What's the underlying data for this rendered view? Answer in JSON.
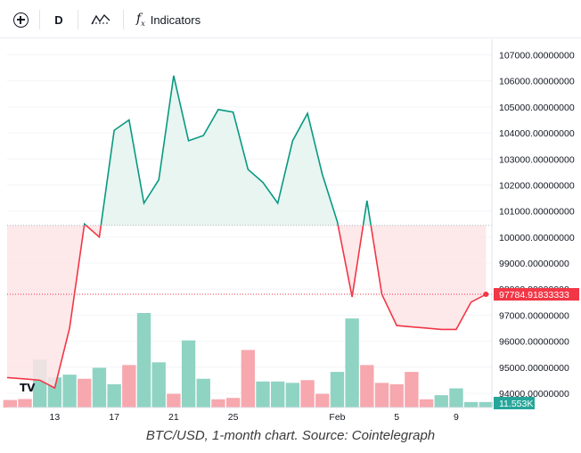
{
  "toolbar": {
    "add_icon": "plus-circle-icon",
    "interval": "D",
    "chart_type_icon": "line-chart-type-icon",
    "indicators_icon": "function-icon",
    "indicators_label": "Indicators"
  },
  "logo_text": "TV",
  "caption": "BTC/USD, 1-month chart. Source: Cointelegraph",
  "colors": {
    "up_line": "#089981",
    "down_line": "#f23645",
    "up_fill": "#e6f4f0",
    "down_fill": "#fde4e6",
    "vol_up": "#8fd3c3",
    "vol_down": "#f7a7ae",
    "price_tag": "#f23645",
    "vol_tag": "#26a69a"
  },
  "chart_data": {
    "type": "line",
    "baseline": 100450,
    "y_ticks": [
      "107000.00000000",
      "106000.00000000",
      "105000.00000000",
      "104000.00000000",
      "103000.00000000",
      "102000.00000000",
      "101000.00000000",
      "100000.00000000",
      "99000.00000000",
      "98000.00000000",
      "97000.00000000",
      "96000.00000000",
      "95000.00000000",
      "94000.00000000"
    ],
    "y_tick_values": [
      107000,
      106000,
      105000,
      104000,
      103000,
      102000,
      101000,
      100000,
      99000,
      98000,
      97000,
      96000,
      95000,
      94000
    ],
    "ylim": [
      93450,
      107600
    ],
    "x_ticks": [
      {
        "label": "13",
        "day": 13
      },
      {
        "label": "17",
        "day": 17
      },
      {
        "label": "21",
        "day": 21
      },
      {
        "label": "25",
        "day": 25
      },
      {
        "label": "Feb",
        "day": 32
      },
      {
        "label": "5",
        "day": 36
      },
      {
        "label": "9",
        "day": 40
      }
    ],
    "price_days": [
      9.8,
      11,
      12,
      13,
      14,
      15,
      16,
      17,
      18,
      19,
      20,
      21,
      22,
      23,
      24,
      25,
      26,
      27,
      28,
      29,
      30,
      31,
      32,
      33,
      34,
      35,
      36,
      37,
      38,
      39,
      40,
      41,
      42
    ],
    "prices": [
      94600,
      94550,
      94500,
      94200,
      96500,
      100500,
      100000,
      104100,
      104500,
      101300,
      102200,
      106200,
      103700,
      103900,
      104900,
      104800,
      102600,
      102100,
      101300,
      103700,
      104750,
      102400,
      100600,
      97700,
      101400,
      97800,
      96600,
      96550,
      96500,
      96450,
      96450,
      97500,
      97800
    ],
    "current_price_label": "97784.91833333",
    "volume_days": [
      10,
      11,
      12,
      13,
      14,
      15,
      16,
      17,
      18,
      19,
      20,
      21,
      22,
      23,
      24,
      25,
      26,
      27,
      28,
      29,
      30,
      31,
      32,
      33,
      34,
      35,
      36,
      37,
      38,
      39,
      40,
      41,
      42
    ],
    "volumes": [
      5.5,
      6.2,
      35,
      22,
      24,
      21,
      29,
      17,
      31,
      69,
      33,
      10,
      49,
      21,
      6,
      7,
      42,
      19,
      19,
      18,
      20,
      10,
      26,
      65,
      31,
      18,
      17,
      26,
      6,
      9,
      14,
      4,
      4
    ],
    "volume_up": [
      false,
      false,
      true,
      true,
      true,
      false,
      true,
      true,
      false,
      true,
      true,
      false,
      true,
      true,
      false,
      false,
      false,
      true,
      true,
      true,
      false,
      false,
      true,
      true,
      false,
      false,
      false,
      false,
      false,
      true,
      true,
      true,
      true
    ],
    "volume_label": "11.553K"
  }
}
